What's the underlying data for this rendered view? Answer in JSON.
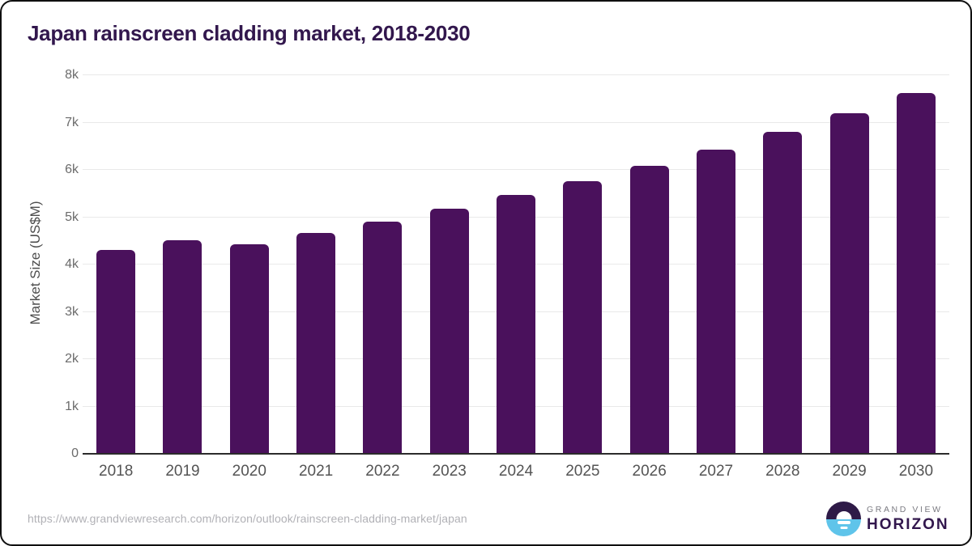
{
  "chart_data": {
    "type": "bar",
    "title": "Japan rainscreen cladding market, 2018-2030",
    "categories": [
      "2018",
      "2019",
      "2020",
      "2021",
      "2022",
      "2023",
      "2024",
      "2025",
      "2026",
      "2027",
      "2028",
      "2029",
      "2030"
    ],
    "values": [
      4300,
      4510,
      4430,
      4670,
      4910,
      5180,
      5470,
      5760,
      6080,
      6420,
      6810,
      7200,
      7620
    ],
    "xlabel": "",
    "ylabel": "Market Size (US$M)",
    "ylim": [
      0,
      8000
    ],
    "yticks": [
      0,
      1000,
      2000,
      3000,
      4000,
      5000,
      6000,
      7000,
      8000
    ],
    "ytick_labels": [
      "0",
      "1k",
      "2k",
      "3k",
      "4k",
      "5k",
      "6k",
      "7k",
      "8k"
    ],
    "grid": "horizontal",
    "legend": "none",
    "bar_color": "#4a115c"
  },
  "footer": {
    "source_url": "https://www.grandviewresearch.com/horizon/outlook/rainscreen-cladding-market/japan",
    "logo": {
      "brand_top": "GRAND VIEW",
      "brand_bottom": "HORIZON",
      "icon": "horizon-sun-over-water-icon"
    }
  },
  "colors": {
    "title": "#32174d",
    "bar": "#4a115c",
    "x_label": "#545454",
    "y_tick": "#6b6b6b",
    "gridline": "#e9e9e9",
    "baseline": "#2b2b2b",
    "url_text": "#b1b1b6",
    "logo_purple": "#2e1a47",
    "logo_blue": "#5fc4ea",
    "grand_view_text": "#7b7b82"
  }
}
